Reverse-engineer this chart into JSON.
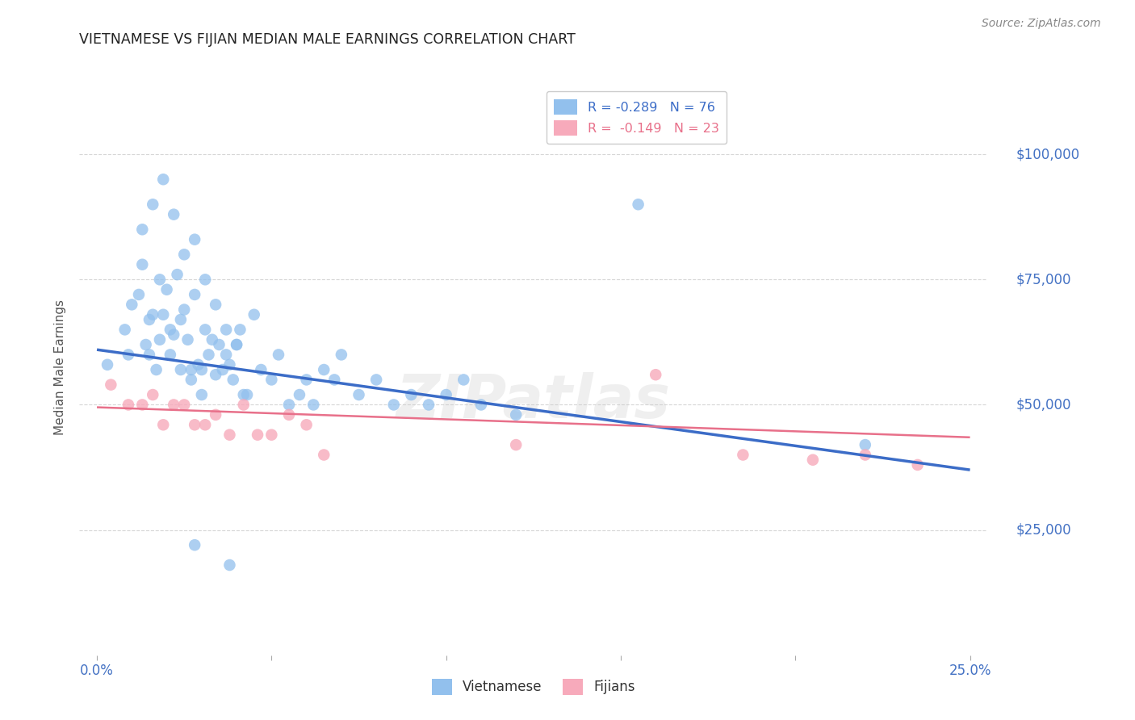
{
  "title": "VIETNAMESE VS FIJIAN MEDIAN MALE EARNINGS CORRELATION CHART",
  "source": "Source: ZipAtlas.com",
  "ylabel": "Median Male Earnings",
  "ytick_labels": [
    "$25,000",
    "$50,000",
    "$75,000",
    "$100,000"
  ],
  "ytick_values": [
    25000,
    50000,
    75000,
    100000
  ],
  "ylim": [
    0,
    115000
  ],
  "xlim": [
    -0.005,
    0.255
  ],
  "legend_blue_label": "R = -0.289   N = 76",
  "legend_pink_label": "R =  -0.149   N = 23",
  "legend_bottom_blue": "Vietnamese",
  "legend_bottom_pink": "Fijians",
  "blue_color": "#92C0ED",
  "pink_color": "#F7AABB",
  "blue_line_color": "#3B6CC7",
  "pink_line_color": "#E8708A",
  "ytick_color": "#4472C4",
  "xtick_color": "#4472C4",
  "watermark_text": "ZIPatlas",
  "viet_x": [
    0.003,
    0.008,
    0.009,
    0.01,
    0.012,
    0.013,
    0.014,
    0.015,
    0.016,
    0.017,
    0.018,
    0.019,
    0.02,
    0.021,
    0.022,
    0.023,
    0.024,
    0.025,
    0.026,
    0.027,
    0.028,
    0.029,
    0.03,
    0.031,
    0.032,
    0.033,
    0.034,
    0.035,
    0.036,
    0.037,
    0.038,
    0.039,
    0.04,
    0.041,
    0.042,
    0.043,
    0.045,
    0.047,
    0.05,
    0.052,
    0.055,
    0.058,
    0.06,
    0.062,
    0.065,
    0.068,
    0.07,
    0.075,
    0.08,
    0.085,
    0.09,
    0.095,
    0.1,
    0.105,
    0.11,
    0.12,
    0.013,
    0.016,
    0.019,
    0.022,
    0.025,
    0.028,
    0.031,
    0.034,
    0.037,
    0.04,
    0.015,
    0.018,
    0.021,
    0.024,
    0.027,
    0.03,
    0.155,
    0.22,
    0.028,
    0.038
  ],
  "viet_y": [
    58000,
    65000,
    60000,
    70000,
    72000,
    78000,
    62000,
    60000,
    68000,
    57000,
    75000,
    68000,
    73000,
    65000,
    64000,
    76000,
    67000,
    69000,
    63000,
    57000,
    72000,
    58000,
    57000,
    65000,
    60000,
    63000,
    56000,
    62000,
    57000,
    60000,
    58000,
    55000,
    62000,
    65000,
    52000,
    52000,
    68000,
    57000,
    55000,
    60000,
    50000,
    52000,
    55000,
    50000,
    57000,
    55000,
    60000,
    52000,
    55000,
    50000,
    52000,
    50000,
    52000,
    55000,
    50000,
    48000,
    85000,
    90000,
    95000,
    88000,
    80000,
    83000,
    75000,
    70000,
    65000,
    62000,
    67000,
    63000,
    60000,
    57000,
    55000,
    52000,
    90000,
    42000,
    22000,
    18000
  ],
  "fiji_x": [
    0.004,
    0.009,
    0.013,
    0.016,
    0.019,
    0.022,
    0.025,
    0.028,
    0.031,
    0.034,
    0.038,
    0.042,
    0.046,
    0.05,
    0.055,
    0.06,
    0.065,
    0.12,
    0.16,
    0.185,
    0.205,
    0.22,
    0.235
  ],
  "fiji_y": [
    54000,
    50000,
    50000,
    52000,
    46000,
    50000,
    50000,
    46000,
    46000,
    48000,
    44000,
    50000,
    44000,
    44000,
    48000,
    46000,
    40000,
    42000,
    56000,
    40000,
    39000,
    40000,
    38000
  ],
  "blue_trend_x0": 0.0,
  "blue_trend_x1": 0.25,
  "blue_trend_y0": 61000,
  "blue_trend_y1": 37000,
  "pink_trend_x0": 0.0,
  "pink_trend_x1": 0.25,
  "pink_trend_y0": 49500,
  "pink_trend_y1": 43500
}
